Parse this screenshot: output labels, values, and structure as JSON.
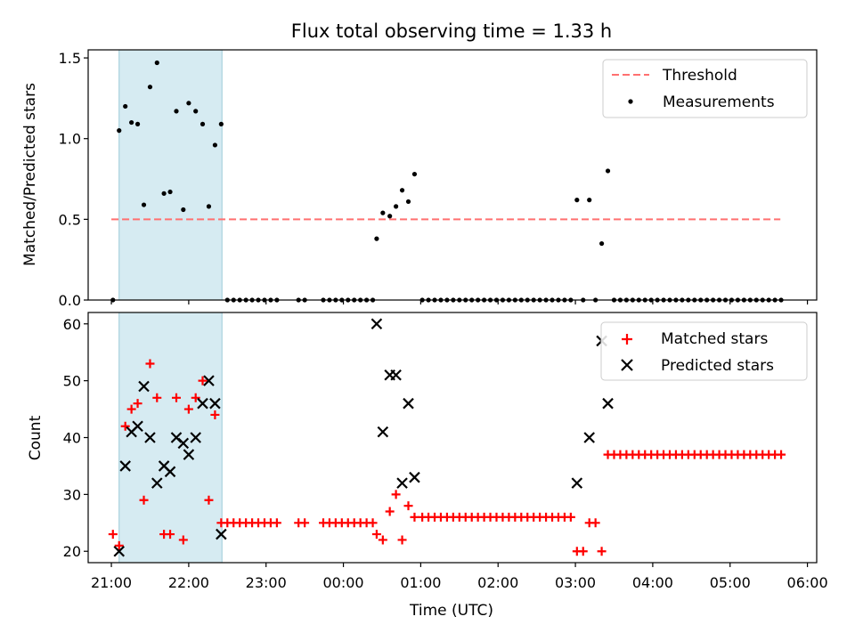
{
  "title": "Flux total observing time = 1.33 h",
  "chart_data": [
    {
      "type": "scatter",
      "ylabel": "Matched/Predicted stars",
      "xlabel": "",
      "xlim": [
        20.7,
        30.12
      ],
      "ylim": [
        0,
        1.55
      ],
      "xticks": [
        21,
        22,
        23,
        24,
        25,
        26,
        27,
        28,
        29,
        30
      ],
      "xtick_labels_visible": false,
      "yticks": [
        0.0,
        0.5,
        1.0,
        1.5
      ],
      "ytick_labels": [
        "0.0",
        "0.5",
        "1.0",
        "1.5"
      ],
      "shaded_span": [
        21.1,
        22.43
      ],
      "threshold": {
        "value": 0.5,
        "x": [
          21.0,
          29.65
        ],
        "color": "#ff7070",
        "label": "Threshold"
      },
      "legend": {
        "placement": "upper right",
        "entries": [
          "Threshold",
          "Measurements"
        ]
      },
      "series": [
        {
          "name": "Measurements",
          "marker": "dot",
          "color": "#000000",
          "points": [
            [
              21.02,
              0.0
            ],
            [
              21.1,
              1.05
            ],
            [
              21.18,
              1.2
            ],
            [
              21.26,
              1.1
            ],
            [
              21.34,
              1.09
            ],
            [
              21.42,
              0.59
            ],
            [
              21.5,
              1.32
            ],
            [
              21.59,
              1.47
            ],
            [
              21.68,
              0.66
            ],
            [
              21.76,
              0.67
            ],
            [
              21.84,
              1.17
            ],
            [
              21.93,
              0.56
            ],
            [
              22.0,
              1.22
            ],
            [
              22.09,
              1.17
            ],
            [
              22.18,
              1.09
            ],
            [
              22.26,
              0.58
            ],
            [
              22.34,
              0.96
            ],
            [
              22.42,
              1.09
            ],
            [
              22.5,
              0.0
            ],
            [
              22.58,
              0.0
            ],
            [
              22.66,
              0.0
            ],
            [
              22.74,
              0.0
            ],
            [
              22.82,
              0.0
            ],
            [
              22.9,
              0.0
            ],
            [
              22.98,
              0.0
            ],
            [
              23.06,
              0.0
            ],
            [
              23.14,
              0.0
            ],
            [
              23.42,
              0.0
            ],
            [
              23.5,
              0.0
            ],
            [
              23.74,
              0.0
            ],
            [
              23.82,
              0.0
            ],
            [
              23.9,
              0.0
            ],
            [
              23.98,
              0.0
            ],
            [
              24.06,
              0.0
            ],
            [
              24.14,
              0.0
            ],
            [
              24.22,
              0.0
            ],
            [
              24.3,
              0.0
            ],
            [
              24.38,
              0.0
            ],
            [
              24.43,
              0.38
            ],
            [
              24.51,
              0.54
            ],
            [
              24.6,
              0.52
            ],
            [
              24.68,
              0.58
            ],
            [
              24.76,
              0.68
            ],
            [
              24.84,
              0.61
            ],
            [
              24.92,
              0.78
            ],
            [
              25.02,
              0.0
            ],
            [
              25.1,
              0.0
            ],
            [
              25.18,
              0.0
            ],
            [
              25.26,
              0.0
            ],
            [
              25.34,
              0.0
            ],
            [
              25.42,
              0.0
            ],
            [
              25.5,
              0.0
            ],
            [
              25.58,
              0.0
            ],
            [
              25.66,
              0.0
            ],
            [
              25.74,
              0.0
            ],
            [
              25.82,
              0.0
            ],
            [
              25.9,
              0.0
            ],
            [
              25.98,
              0.0
            ],
            [
              26.06,
              0.0
            ],
            [
              26.14,
              0.0
            ],
            [
              26.22,
              0.0
            ],
            [
              26.3,
              0.0
            ],
            [
              26.38,
              0.0
            ],
            [
              26.46,
              0.0
            ],
            [
              26.54,
              0.0
            ],
            [
              26.62,
              0.0
            ],
            [
              26.7,
              0.0
            ],
            [
              26.78,
              0.0
            ],
            [
              26.86,
              0.0
            ],
            [
              26.94,
              0.0
            ],
            [
              27.02,
              0.62
            ],
            [
              27.1,
              0.0
            ],
            [
              27.18,
              0.62
            ],
            [
              27.26,
              0.0
            ],
            [
              27.34,
              0.35
            ],
            [
              27.42,
              0.8
            ],
            [
              27.5,
              0.0
            ],
            [
              27.58,
              0.0
            ],
            [
              27.66,
              0.0
            ],
            [
              27.74,
              0.0
            ],
            [
              27.82,
              0.0
            ],
            [
              27.9,
              0.0
            ],
            [
              27.98,
              0.0
            ],
            [
              28.06,
              0.0
            ],
            [
              28.14,
              0.0
            ],
            [
              28.22,
              0.0
            ],
            [
              28.3,
              0.0
            ],
            [
              28.38,
              0.0
            ],
            [
              28.46,
              0.0
            ],
            [
              28.54,
              0.0
            ],
            [
              28.62,
              0.0
            ],
            [
              28.7,
              0.0
            ],
            [
              28.78,
              0.0
            ],
            [
              28.86,
              0.0
            ],
            [
              28.94,
              0.0
            ],
            [
              29.02,
              0.0
            ],
            [
              29.1,
              0.0
            ],
            [
              29.18,
              0.0
            ],
            [
              29.26,
              0.0
            ],
            [
              29.34,
              0.0
            ],
            [
              29.42,
              0.0
            ],
            [
              29.5,
              0.0
            ],
            [
              29.58,
              0.0
            ],
            [
              29.66,
              0.0
            ]
          ]
        }
      ]
    },
    {
      "type": "scatter",
      "ylabel": "Count",
      "xlabel": "Time (UTC)",
      "xlim": [
        20.7,
        30.12
      ],
      "ylim": [
        18,
        62
      ],
      "xticks": [
        21,
        22,
        23,
        24,
        25,
        26,
        27,
        28,
        29,
        30
      ],
      "xtick_labels": [
        "21:00",
        "22:00",
        "23:00",
        "00:00",
        "01:00",
        "02:00",
        "03:00",
        "04:00",
        "05:00",
        "06:00"
      ],
      "yticks": [
        20,
        30,
        40,
        50,
        60
      ],
      "ytick_labels": [
        "20",
        "30",
        "40",
        "50",
        "60"
      ],
      "shaded_span": [
        21.1,
        22.43
      ],
      "legend": {
        "placement": "upper right",
        "entries": [
          "Matched stars",
          "Predicted stars"
        ]
      },
      "series": [
        {
          "name": "Matched stars",
          "marker": "plus",
          "color": "#ff0000",
          "points": [
            [
              21.02,
              23
            ],
            [
              21.1,
              21
            ],
            [
              21.18,
              42
            ],
            [
              21.26,
              45
            ],
            [
              21.34,
              46
            ],
            [
              21.42,
              29
            ],
            [
              21.5,
              53
            ],
            [
              21.59,
              47
            ],
            [
              21.68,
              23
            ],
            [
              21.76,
              23
            ],
            [
              21.84,
              47
            ],
            [
              21.93,
              22
            ],
            [
              22.0,
              45
            ],
            [
              22.09,
              47
            ],
            [
              22.18,
              50
            ],
            [
              22.26,
              29
            ],
            [
              22.34,
              44
            ],
            [
              22.42,
              25
            ],
            [
              22.5,
              25
            ],
            [
              22.58,
              25
            ],
            [
              22.66,
              25
            ],
            [
              22.74,
              25
            ],
            [
              22.82,
              25
            ],
            [
              22.9,
              25
            ],
            [
              22.98,
              25
            ],
            [
              23.06,
              25
            ],
            [
              23.14,
              25
            ],
            [
              23.42,
              25
            ],
            [
              23.5,
              25
            ],
            [
              23.74,
              25
            ],
            [
              23.82,
              25
            ],
            [
              23.9,
              25
            ],
            [
              23.98,
              25
            ],
            [
              24.06,
              25
            ],
            [
              24.14,
              25
            ],
            [
              24.22,
              25
            ],
            [
              24.3,
              25
            ],
            [
              24.38,
              25
            ],
            [
              24.43,
              23
            ],
            [
              24.51,
              22
            ],
            [
              24.6,
              27
            ],
            [
              24.68,
              30
            ],
            [
              24.76,
              22
            ],
            [
              24.84,
              28
            ],
            [
              24.92,
              26
            ],
            [
              25.02,
              26
            ],
            [
              25.1,
              26
            ],
            [
              25.18,
              26
            ],
            [
              25.26,
              26
            ],
            [
              25.34,
              26
            ],
            [
              25.42,
              26
            ],
            [
              25.5,
              26
            ],
            [
              25.58,
              26
            ],
            [
              25.66,
              26
            ],
            [
              25.74,
              26
            ],
            [
              25.82,
              26
            ],
            [
              25.9,
              26
            ],
            [
              25.98,
              26
            ],
            [
              26.06,
              26
            ],
            [
              26.14,
              26
            ],
            [
              26.22,
              26
            ],
            [
              26.3,
              26
            ],
            [
              26.38,
              26
            ],
            [
              26.46,
              26
            ],
            [
              26.54,
              26
            ],
            [
              26.62,
              26
            ],
            [
              26.7,
              26
            ],
            [
              26.78,
              26
            ],
            [
              26.86,
              26
            ],
            [
              26.94,
              26
            ],
            [
              27.02,
              20
            ],
            [
              27.1,
              20
            ],
            [
              27.18,
              25
            ],
            [
              27.26,
              25
            ],
            [
              27.34,
              20
            ],
            [
              27.42,
              37
            ],
            [
              27.5,
              37
            ],
            [
              27.58,
              37
            ],
            [
              27.66,
              37
            ],
            [
              27.74,
              37
            ],
            [
              27.82,
              37
            ],
            [
              27.9,
              37
            ],
            [
              27.98,
              37
            ],
            [
              28.06,
              37
            ],
            [
              28.14,
              37
            ],
            [
              28.22,
              37
            ],
            [
              28.3,
              37
            ],
            [
              28.38,
              37
            ],
            [
              28.46,
              37
            ],
            [
              28.54,
              37
            ],
            [
              28.62,
              37
            ],
            [
              28.7,
              37
            ],
            [
              28.78,
              37
            ],
            [
              28.86,
              37
            ],
            [
              28.94,
              37
            ],
            [
              29.02,
              37
            ],
            [
              29.1,
              37
            ],
            [
              29.18,
              37
            ],
            [
              29.26,
              37
            ],
            [
              29.34,
              37
            ],
            [
              29.42,
              37
            ],
            [
              29.5,
              37
            ],
            [
              29.58,
              37
            ],
            [
              29.66,
              37
            ]
          ]
        },
        {
          "name": "Predicted stars",
          "marker": "x",
          "color": "#000000",
          "points": [
            [
              21.1,
              20
            ],
            [
              21.18,
              35
            ],
            [
              21.26,
              41
            ],
            [
              21.34,
              42
            ],
            [
              21.42,
              49
            ],
            [
              21.5,
              40
            ],
            [
              21.59,
              32
            ],
            [
              21.68,
              35
            ],
            [
              21.76,
              34
            ],
            [
              21.84,
              40
            ],
            [
              21.93,
              39
            ],
            [
              22.0,
              37
            ],
            [
              22.09,
              40
            ],
            [
              22.18,
              46
            ],
            [
              22.26,
              50
            ],
            [
              22.34,
              46
            ],
            [
              22.42,
              23
            ],
            [
              24.43,
              60
            ],
            [
              24.51,
              41
            ],
            [
              24.6,
              51
            ],
            [
              24.68,
              51
            ],
            [
              24.76,
              32
            ],
            [
              24.84,
              46
            ],
            [
              24.92,
              33
            ],
            [
              27.02,
              32
            ],
            [
              27.18,
              40
            ],
            [
              27.34,
              57
            ],
            [
              27.42,
              46
            ]
          ]
        }
      ]
    }
  ]
}
